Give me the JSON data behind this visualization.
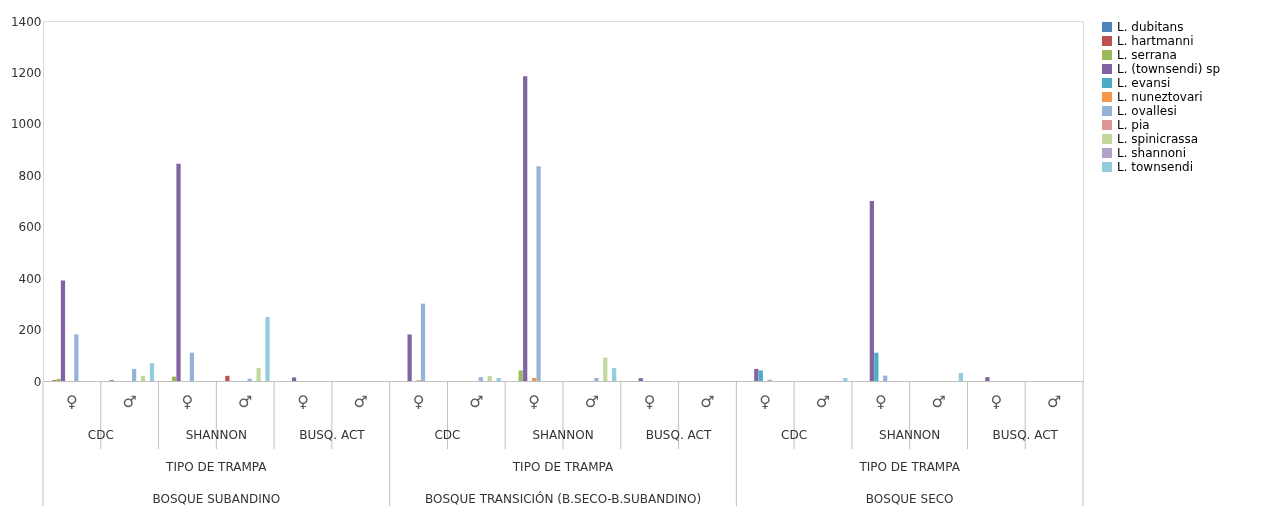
{
  "chart_data": {
    "type": "bar",
    "categories": [
      "♀",
      "♂",
      "♀",
      "♂",
      "♀",
      "♂",
      "♀",
      "♂",
      "♀",
      "♂",
      "♀",
      "♂",
      "♀",
      "♂",
      "♀",
      "♂",
      "♀",
      "♂"
    ],
    "series": [
      {
        "name": "L. dubitans",
        "color": "#4f81bd",
        "values": [
          0,
          0,
          0,
          0,
          0,
          0,
          0,
          0,
          0,
          0,
          0,
          0,
          0,
          0,
          0,
          0,
          0,
          0
        ]
      },
      {
        "name": "L. hartmanni",
        "color": "#c0504d",
        "values": [
          3,
          3,
          0,
          20,
          0,
          0,
          0,
          0,
          0,
          0,
          0,
          0,
          0,
          0,
          0,
          0,
          0,
          0
        ]
      },
      {
        "name": "L.  serrana",
        "color": "#9bbb59",
        "values": [
          8,
          0,
          17,
          0,
          0,
          0,
          0,
          0,
          41,
          0,
          0,
          0,
          0,
          0,
          0,
          0,
          0,
          0
        ]
      },
      {
        "name": "L. (townsendi) sp",
        "color": "#8064a2",
        "values": [
          391,
          0,
          845,
          0,
          14,
          0,
          181,
          0,
          1185,
          0,
          11,
          0,
          47,
          0,
          700,
          0,
          15,
          0
        ]
      },
      {
        "name": "L. evansi",
        "color": "#4bacc6",
        "values": [
          0,
          0,
          0,
          0,
          0,
          0,
          0,
          0,
          0,
          0,
          0,
          0,
          41,
          0,
          110,
          0,
          0,
          0
        ]
      },
      {
        "name": "L. nuneztovari",
        "color": "#f79646",
        "values": [
          0,
          0,
          0,
          0,
          0,
          0,
          3,
          0,
          12,
          0,
          0,
          0,
          0,
          0,
          0,
          0,
          0,
          0
        ]
      },
      {
        "name": "L. ovallesi",
        "color": "#95b3d7",
        "values": [
          181,
          47,
          110,
          9,
          0,
          0,
          301,
          15,
          835,
          12,
          0,
          0,
          5,
          0,
          21,
          0,
          0,
          0
        ]
      },
      {
        "name": "L. pia",
        "color": "#d99694",
        "values": [
          0,
          0,
          0,
          0,
          0,
          0,
          0,
          0,
          0,
          0,
          0,
          0,
          0,
          0,
          0,
          0,
          0,
          0
        ]
      },
      {
        "name": "L. spinicrassa",
        "color": "#c3d69b",
        "values": [
          0,
          20,
          0,
          50,
          0,
          0,
          0,
          20,
          0,
          91,
          0,
          0,
          0,
          0,
          0,
          0,
          0,
          0
        ]
      },
      {
        "name": "L. shannoni",
        "color": "#b3a2c7",
        "values": [
          0,
          0,
          0,
          0,
          0,
          0,
          0,
          0,
          0,
          0,
          0,
          0,
          0,
          0,
          0,
          0,
          0,
          0
        ]
      },
      {
        "name": "L. townsendi",
        "color": "#92cddc",
        "values": [
          0,
          69,
          0,
          249,
          0,
          0,
          0,
          12,
          0,
          50,
          0,
          0,
          0,
          12,
          0,
          31,
          0,
          0
        ]
      }
    ],
    "ylim": [
      0,
      1400
    ],
    "yticks": [
      0,
      200,
      400,
      600,
      800,
      1000,
      1200,
      1400
    ],
    "grid": false,
    "legend": "right",
    "annotations": [
      "CDC",
      "SHANNON",
      "BUSQ. ACT",
      "CDC",
      "SHANNON",
      "BUSQ. ACT",
      "CDC",
      "SHANNON",
      "BUSQ. ACT",
      "TIPO DE TRAMPA",
      "TIPO DE TRAMPA",
      "TIPO DE TRAMPA",
      "BOSQUE SUBANDINO",
      "BOSQUE TRANSICIÓN (B.SECO-B.SUBANDINO)",
      "BOSQUE SECO"
    ]
  }
}
